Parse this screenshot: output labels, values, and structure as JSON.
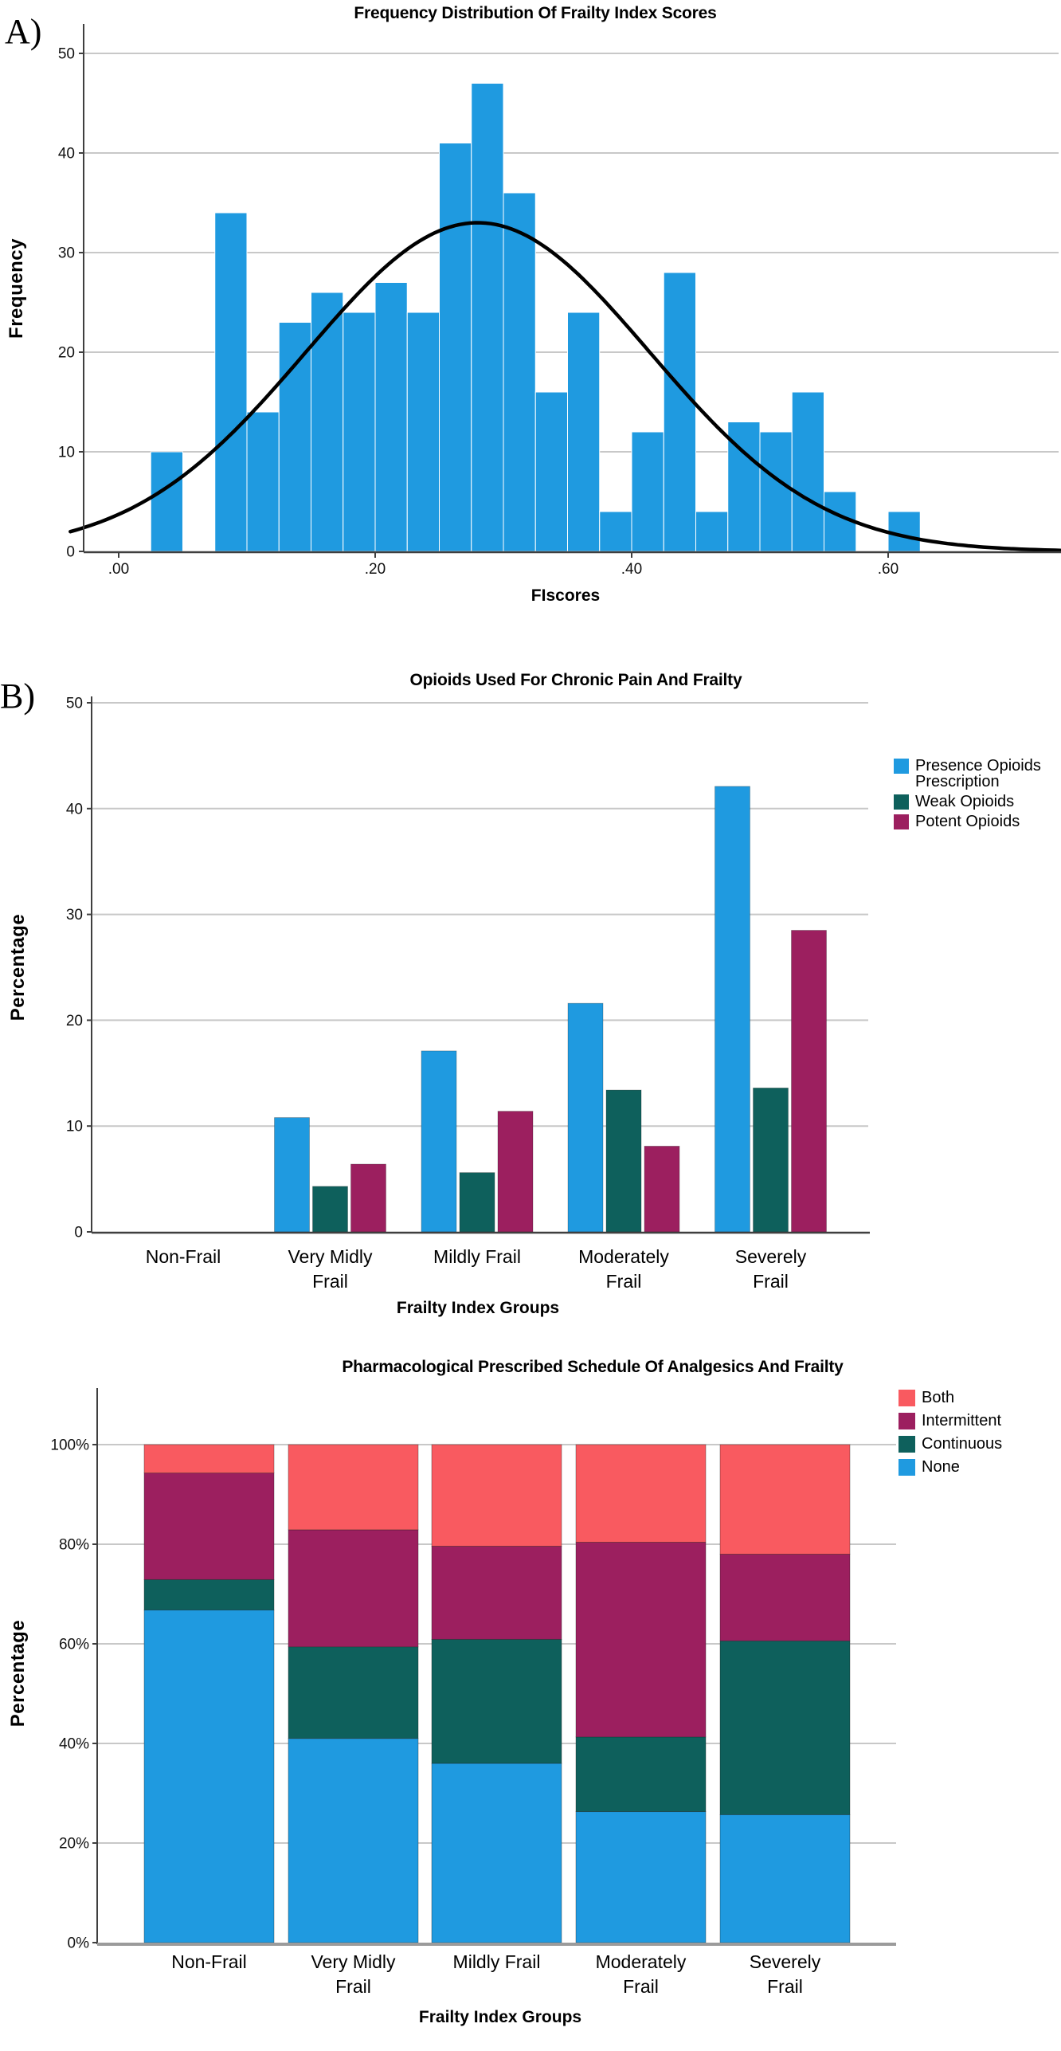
{
  "figure": {
    "panel_a_label": "A)",
    "panel_b_label": "B)"
  },
  "chart_data": [
    {
      "type": "histogram",
      "panel": "A",
      "title": "Frequency Distribution Of Frailty Index Scores",
      "xlabel": "FIscores",
      "ylabel": "Frequency",
      "bar_color": "#1F9AE0",
      "curve_color": "#000000",
      "grid_color": "#C8C8C8",
      "ylim": [
        0,
        55
      ],
      "y_ticks": [
        0,
        10,
        20,
        30,
        40,
        50
      ],
      "x_ticks": [
        {
          "label": ".00",
          "value": 0.0
        },
        {
          "label": ".20",
          "value": 0.2
        },
        {
          "label": ".40",
          "value": 0.4
        },
        {
          "label": ".60",
          "value": 0.6
        }
      ],
      "bin_width": 0.025,
      "bins": [
        [
          0.025,
          10
        ],
        [
          0.075,
          34
        ],
        [
          0.1,
          14
        ],
        [
          0.125,
          23
        ],
        [
          0.15,
          26
        ],
        [
          0.175,
          24
        ],
        [
          0.2,
          27
        ],
        [
          0.225,
          24
        ],
        [
          0.25,
          41
        ],
        [
          0.275,
          47
        ],
        [
          0.3,
          36
        ],
        [
          0.325,
          16
        ],
        [
          0.35,
          24
        ],
        [
          0.375,
          4
        ],
        [
          0.4,
          12
        ],
        [
          0.425,
          28
        ],
        [
          0.45,
          4
        ],
        [
          0.475,
          13
        ],
        [
          0.5,
          12
        ],
        [
          0.525,
          16
        ],
        [
          0.55,
          6
        ],
        [
          0.6,
          4
        ]
      ],
      "normal_curve": {
        "mean": 0.28,
        "sd": 0.134,
        "peak": 33
      }
    },
    {
      "type": "bar",
      "panel": "B",
      "title": "Opioids Used For Chronic Pain And Frailty",
      "xlabel": "Frailty Index Groups",
      "ylabel": "Percentage",
      "ylim": [
        0,
        50
      ],
      "y_ticks": [
        0,
        10,
        20,
        30,
        40,
        50
      ],
      "grid_color": "#C8C8C8",
      "categories": [
        "Non-Frail",
        "Very Midly Frail",
        "Mildly Frail",
        "Moderately Frail",
        "Severely Frail"
      ],
      "category_label_lines": [
        [
          "Non-Frail"
        ],
        [
          "Very Midly",
          "Frail"
        ],
        [
          "Mildly Frail"
        ],
        [
          "Moderately",
          "Frail"
        ],
        [
          "Severely",
          "Frail"
        ]
      ],
      "series": [
        {
          "name": "Presence Opioids Prescription",
          "color": "#1F9AE0",
          "values": [
            0,
            10.8,
            17.1,
            21.6,
            42.1
          ]
        },
        {
          "name": "Weak Opioids",
          "color": "#0E605C",
          "values": [
            0,
            4.3,
            5.6,
            13.4,
            13.6
          ]
        },
        {
          "name": "Potent Opioids",
          "color": "#9C1F5F",
          "values": [
            0,
            6.4,
            11.4,
            8.1,
            28.5
          ]
        }
      ],
      "legend_order_top_to_bottom": [
        "Presence Opioids Prescription",
        "Weak Opioids",
        "Potent Opioids"
      ]
    },
    {
      "type": "stacked-bar-100",
      "title": "Pharmacological Prescribed Schedule Of Analgesics And Frailty",
      "xlabel": "Frailty Index Groups",
      "ylabel": "Percentage",
      "grid_color": "#C8C8C8",
      "y_ticks_percent": [
        0,
        20,
        40,
        60,
        80,
        100
      ],
      "y_tick_labels": [
        "0%",
        "20%",
        "40%",
        "60%",
        "80%",
        "100%"
      ],
      "categories": [
        "Non-Frail",
        "Very Midly Frail",
        "Mildly Frail",
        "Moderately Frail",
        "Severely Frail"
      ],
      "category_label_lines": [
        [
          "Non-Frail"
        ],
        [
          "Very Midly",
          "Frail"
        ],
        [
          "Mildly Frail"
        ],
        [
          "Moderately",
          "Frail"
        ],
        [
          "Severely",
          "Frail"
        ]
      ],
      "stack_order_bottom_to_top": [
        "None",
        "Continuous",
        "Intermittent",
        "Both"
      ],
      "legend_order_top_to_bottom": [
        "Both",
        "Intermittent",
        "Continuous",
        "None"
      ],
      "series": [
        {
          "name": "None",
          "color": "#1F9AE0",
          "values": [
            66.8,
            41.0,
            36.0,
            26.3,
            25.7
          ]
        },
        {
          "name": "Continuous",
          "color": "#0E605C",
          "values": [
            6.1,
            18.4,
            24.9,
            15.0,
            34.9
          ]
        },
        {
          "name": "Intermittent",
          "color": "#9C1F5F",
          "values": [
            21.4,
            23.5,
            18.7,
            39.1,
            17.4
          ]
        },
        {
          "name": "Both",
          "color": "#F95A60",
          "values": [
            5.7,
            17.1,
            20.4,
            19.6,
            22.0
          ]
        }
      ]
    }
  ]
}
